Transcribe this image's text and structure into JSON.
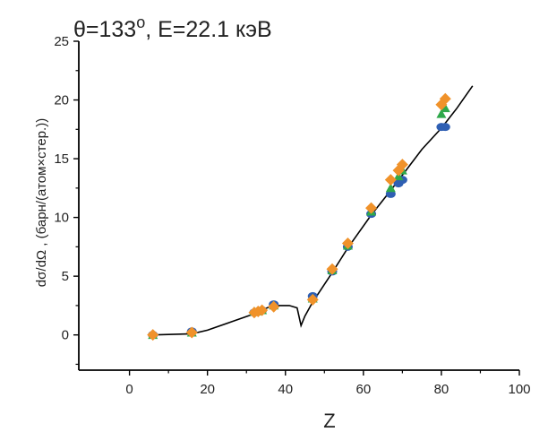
{
  "chart_data": {
    "type": "scatter",
    "title": "θ=133",
    "title_superscript": "o",
    "title_suffix": ", E=22.1 кэВ",
    "xlabel": "Z",
    "ylabel": "dσ/dΩ , (барн/(атом×стер.))",
    "xlim": [
      -13,
      100
    ],
    "ylim": [
      -3,
      25
    ],
    "x_ticks": [
      0,
      20,
      40,
      60,
      80,
      100
    ],
    "y_ticks": [
      0,
      5,
      10,
      15,
      20,
      25
    ],
    "grid": false,
    "series": [
      {
        "marker": "diamond",
        "color": "#f0922a",
        "points": [
          {
            "x": 6,
            "y": 0.0
          },
          {
            "x": 16,
            "y": 0.2
          },
          {
            "x": 32,
            "y": 1.9
          },
          {
            "x": 33,
            "y": 2.0
          },
          {
            "x": 34,
            "y": 2.1
          },
          {
            "x": 37,
            "y": 2.4
          },
          {
            "x": 47,
            "y": 3.0
          },
          {
            "x": 52,
            "y": 5.6
          },
          {
            "x": 56,
            "y": 7.8
          },
          {
            "x": 62,
            "y": 10.8
          },
          {
            "x": 67,
            "y": 13.2
          },
          {
            "x": 69,
            "y": 14.0
          },
          {
            "x": 70,
            "y": 14.5
          },
          {
            "x": 80,
            "y": 19.6
          },
          {
            "x": 81,
            "y": 20.1
          }
        ]
      },
      {
        "marker": "triangle",
        "color": "#2ea84a",
        "points": [
          {
            "x": 6,
            "y": 0.0
          },
          {
            "x": 16,
            "y": 0.2
          },
          {
            "x": 32,
            "y": 2.0
          },
          {
            "x": 33,
            "y": 2.0
          },
          {
            "x": 34,
            "y": 2.1
          },
          {
            "x": 37,
            "y": 2.5
          },
          {
            "x": 47,
            "y": 3.1
          },
          {
            "x": 52,
            "y": 5.5
          },
          {
            "x": 56,
            "y": 7.6
          },
          {
            "x": 62,
            "y": 10.5
          },
          {
            "x": 67,
            "y": 12.5
          },
          {
            "x": 69,
            "y": 13.5
          },
          {
            "x": 70,
            "y": 14.0
          },
          {
            "x": 80,
            "y": 18.8
          },
          {
            "x": 81,
            "y": 19.3
          }
        ]
      },
      {
        "marker": "circle",
        "color": "#2f5fb3",
        "points": [
          {
            "x": 6,
            "y": 0.0
          },
          {
            "x": 16,
            "y": 0.3
          },
          {
            "x": 32,
            "y": 1.9
          },
          {
            "x": 33,
            "y": 2.0
          },
          {
            "x": 34,
            "y": 2.1
          },
          {
            "x": 37,
            "y": 2.6
          },
          {
            "x": 47,
            "y": 3.3
          },
          {
            "x": 52,
            "y": 5.4
          },
          {
            "x": 56,
            "y": 7.5
          },
          {
            "x": 62,
            "y": 10.3
          },
          {
            "x": 67,
            "y": 12.0
          },
          {
            "x": 69,
            "y": 12.9
          },
          {
            "x": 70,
            "y": 13.2
          },
          {
            "x": 80,
            "y": 17.7
          },
          {
            "x": 81,
            "y": 17.7
          }
        ]
      }
    ],
    "curve": {
      "color": "#000000",
      "points": [
        {
          "x": 6,
          "y": 0.0
        },
        {
          "x": 16,
          "y": 0.1
        },
        {
          "x": 20,
          "y": 0.4
        },
        {
          "x": 26,
          "y": 1.1
        },
        {
          "x": 32,
          "y": 1.8
        },
        {
          "x": 36,
          "y": 2.4
        },
        {
          "x": 38,
          "y": 2.5
        },
        {
          "x": 41,
          "y": 2.5
        },
        {
          "x": 43,
          "y": 2.3
        },
        {
          "x": 44,
          "y": 0.8
        },
        {
          "x": 45,
          "y": 1.6
        },
        {
          "x": 47,
          "y": 2.8
        },
        {
          "x": 52,
          "y": 5.3
        },
        {
          "x": 56,
          "y": 7.4
        },
        {
          "x": 62,
          "y": 10.2
        },
        {
          "x": 67,
          "y": 12.3
        },
        {
          "x": 70,
          "y": 13.6
        },
        {
          "x": 75,
          "y": 15.8
        },
        {
          "x": 80,
          "y": 17.6
        },
        {
          "x": 84,
          "y": 19.3
        },
        {
          "x": 88,
          "y": 21.2
        }
      ]
    }
  }
}
